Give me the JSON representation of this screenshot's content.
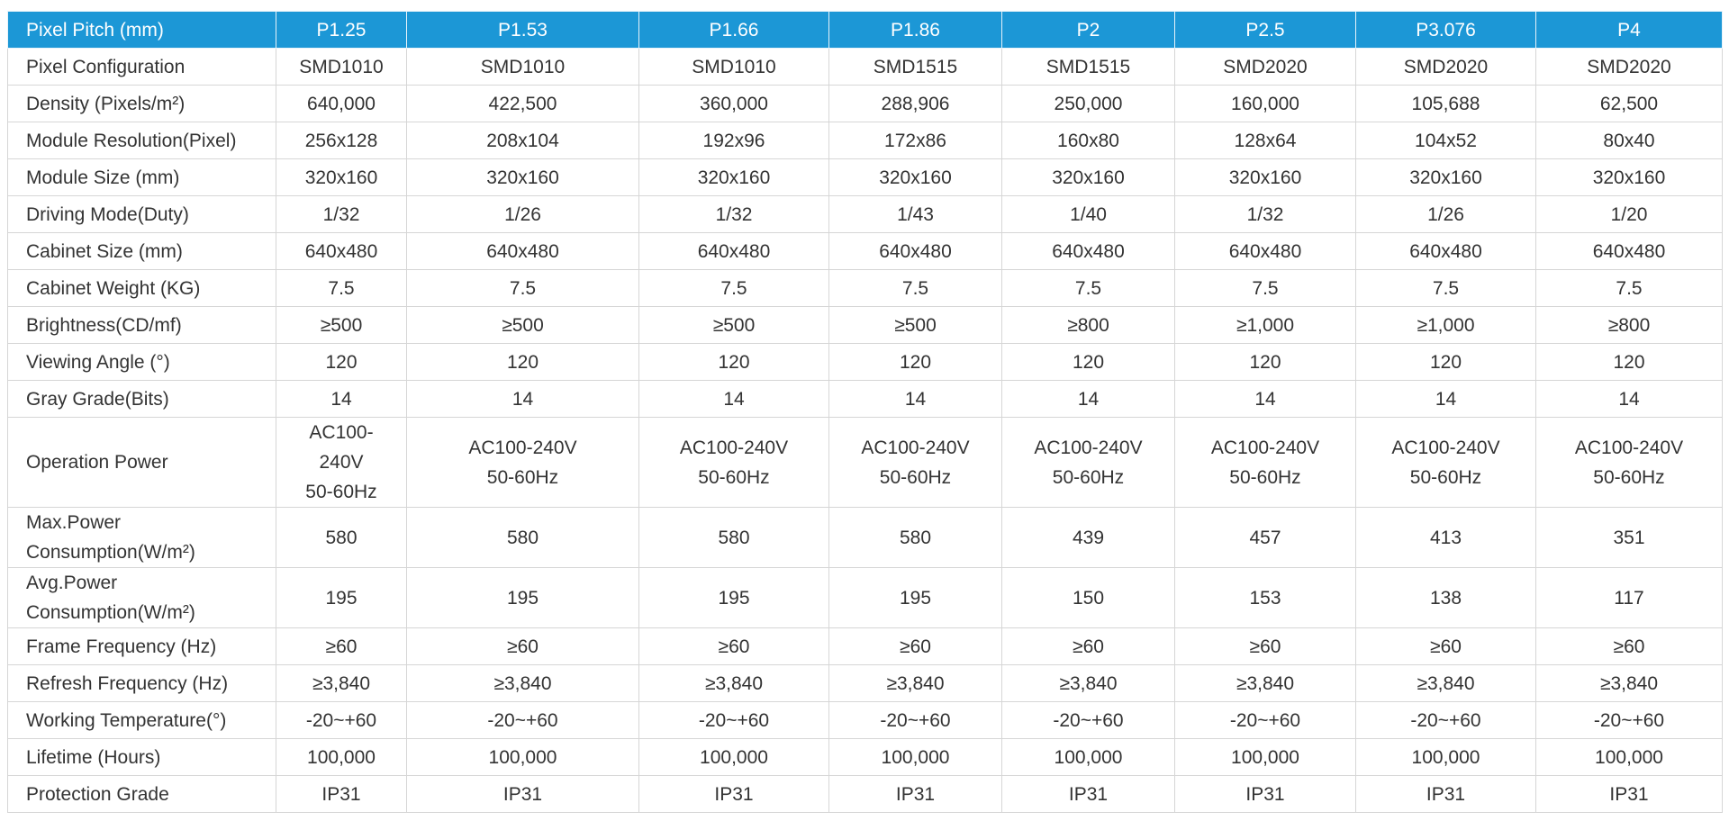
{
  "header": [
    "Pixel Pitch (mm)",
    "P1.25",
    "P1.53",
    "P1.66",
    "P1.86",
    "P2",
    "P2.5",
    "P3.076",
    "P4"
  ],
  "rows": [
    {
      "label": "Pixel Configuration",
      "values": [
        "SMD1010",
        "SMD1010",
        "SMD1010",
        "SMD1515",
        "SMD1515",
        "SMD2020",
        "SMD2020",
        "SMD2020"
      ]
    },
    {
      "label": "Density (Pixels/m²)",
      "values": [
        "640,000",
        "422,500",
        "360,000",
        "288,906",
        "250,000",
        "160,000",
        "105,688",
        "62,500"
      ]
    },
    {
      "label": "Module Resolution(Pixel)",
      "values": [
        "256x128",
        "208x104",
        "192x96",
        "172x86",
        "160x80",
        "128x64",
        "104x52",
        "80x40"
      ]
    },
    {
      "label": "Module Size (mm)",
      "values": [
        "320x160",
        "320x160",
        "320x160",
        "320x160",
        "320x160",
        "320x160",
        "320x160",
        "320x160"
      ]
    },
    {
      "label": "Driving Mode(Duty)",
      "values": [
        "1/32",
        "1/26",
        "1/32",
        "1/43",
        "1/40",
        "1/32",
        "1/26",
        "1/20"
      ]
    },
    {
      "label": "Cabinet Size (mm)",
      "values": [
        "640x480",
        "640x480",
        "640x480",
        "640x480",
        "640x480",
        "640x480",
        "640x480",
        "640x480"
      ]
    },
    {
      "label": "Cabinet Weight (KG)",
      "values": [
        "7.5",
        "7.5",
        "7.5",
        "7.5",
        "7.5",
        "7.5",
        "7.5",
        "7.5"
      ]
    },
    {
      "label": "Brightness(CD/mf)",
      "values": [
        "≥500",
        "≥500",
        "≥500",
        "≥500",
        "≥800",
        "≥1,000",
        "≥1,000",
        "≥800"
      ]
    },
    {
      "label": "Viewing Angle (°)",
      "values": [
        "120",
        "120",
        "120",
        "120",
        "120",
        "120",
        "120",
        "120"
      ]
    },
    {
      "label": "Gray Grade(Bits)",
      "values": [
        "14",
        "14",
        "14",
        "14",
        "14",
        "14",
        "14",
        "14"
      ]
    },
    {
      "label": "Operation Power",
      "values": [
        "AC100-\n240V\n50-60Hz",
        "AC100-240V\n50-60Hz",
        "AC100-240V\n50-60Hz",
        "AC100-240V\n50-60Hz",
        "AC100-240V\n50-60Hz",
        "AC100-240V\n50-60Hz",
        "AC100-240V\n50-60Hz",
        "AC100-240V\n50-60Hz"
      ]
    },
    {
      "label": "Max.Power\nConsumption(W/m²)",
      "values": [
        "580",
        "580",
        "580",
        "580",
        "439",
        "457",
        "413",
        "351"
      ]
    },
    {
      "label": "Avg.Power\nConsumption(W/m²)",
      "values": [
        "195",
        "195",
        "195",
        "195",
        "150",
        "153",
        "138",
        "117"
      ]
    },
    {
      "label": "Frame Frequency (Hz)",
      "values": [
        "≥60",
        "≥60",
        "≥60",
        "≥60",
        "≥60",
        "≥60",
        "≥60",
        "≥60"
      ]
    },
    {
      "label": "Refresh Frequency (Hz)",
      "values": [
        "≥3,840",
        "≥3,840",
        "≥3,840",
        "≥3,840",
        "≥3,840",
        "≥3,840",
        "≥3,840",
        "≥3,840"
      ]
    },
    {
      "label": "Working Temperature(°)",
      "values": [
        "-20~+60",
        "-20~+60",
        "-20~+60",
        "-20~+60",
        "-20~+60",
        "-20~+60",
        "-20~+60",
        "-20~+60"
      ]
    },
    {
      "label": "Lifetime (Hours)",
      "values": [
        "100,000",
        "100,000",
        "100,000",
        "100,000",
        "100,000",
        "100,000",
        "100,000",
        "100,000"
      ]
    },
    {
      "label": "Protection Grade",
      "values": [
        "IP31",
        "IP31",
        "IP31",
        "IP31",
        "IP31",
        "IP31",
        "IP31",
        "IP31"
      ]
    }
  ],
  "colors": {
    "header_bg": "#1c97d6",
    "header_text": "#ffffff",
    "border": "#d6d6d6",
    "body_text": "#333333"
  }
}
